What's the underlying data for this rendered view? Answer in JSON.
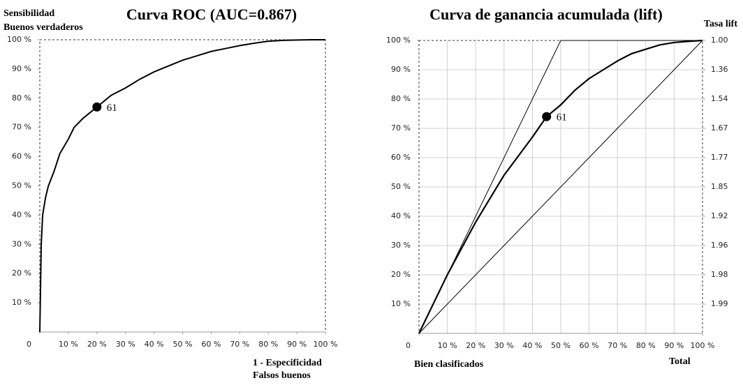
{
  "chart_data": [
    {
      "type": "line",
      "title": "Curva ROC (AUC=0.867)",
      "ylabel": [
        "Sensibilidad",
        "Buenos verdaderos"
      ],
      "xlabel": [
        "1 - Especificidad",
        "Falsos buenos"
      ],
      "xlim": [
        0,
        100
      ],
      "ylim": [
        0,
        100
      ],
      "grid": false,
      "xticks": [
        0,
        {
          "value": 10,
          "label": "10 %"
        },
        {
          "value": 20,
          "label": "20 %"
        },
        {
          "value": 30,
          "label": "30 %"
        },
        {
          "value": 40,
          "label": "40 %"
        },
        {
          "value": 50,
          "label": "50 %"
        },
        {
          "value": 60,
          "label": "60 %"
        },
        {
          "value": 70,
          "label": "70 %"
        },
        {
          "value": 80,
          "label": "80 %"
        },
        {
          "value": 90,
          "label": "90 %"
        },
        {
          "value": 100,
          "label": "100 %"
        }
      ],
      "yticks": [
        {
          "value": 10,
          "label": "10 %"
        },
        {
          "value": 20,
          "label": "20 %"
        },
        {
          "value": 30,
          "label": "30 %"
        },
        {
          "value": 40,
          "label": "40 %"
        },
        {
          "value": 50,
          "label": "50 %"
        },
        {
          "value": 60,
          "label": "60 %"
        },
        {
          "value": 70,
          "label": "70 %"
        },
        {
          "value": 80,
          "label": "80 %"
        },
        {
          "value": 90,
          "label": "90 %"
        },
        {
          "value": 100,
          "label": "100 %"
        }
      ],
      "series": [
        {
          "color": "#000000",
          "line_width": 2,
          "x": [
            0,
            0.5,
            1,
            2,
            3,
            5,
            7,
            10,
            12,
            15,
            20,
            25,
            30,
            35,
            40,
            45,
            50,
            55,
            60,
            65,
            70,
            75,
            80,
            85,
            90,
            95,
            100
          ],
          "values": [
            0,
            30,
            40,
            46,
            50,
            55,
            61,
            66,
            70,
            73,
            77,
            81,
            83.5,
            86.5,
            89,
            91,
            93,
            94.5,
            96,
            97,
            98,
            98.8,
            99.5,
            99.8,
            99.9,
            100,
            100
          ]
        }
      ],
      "marker": {
        "x": 20,
        "y": 77,
        "label": "61"
      }
    },
    {
      "type": "line",
      "title": "Curva de ganancia acumulada (lift)",
      "xlabel_left": "Bien clasificados",
      "xlabel_right": "Total",
      "y2label": "Tasa lift",
      "xlim": [
        0,
        100
      ],
      "ylim": [
        0,
        100
      ],
      "grid": true,
      "xticks": [
        0,
        {
          "value": 10,
          "label": "10 %"
        },
        {
          "value": 20,
          "label": "20 %"
        },
        {
          "value": 30,
          "label": "30 %"
        },
        {
          "value": 40,
          "label": "40 %"
        },
        {
          "value": 50,
          "label": "50 %"
        },
        {
          "value": 60,
          "label": "60 %"
        },
        {
          "value": 70,
          "label": "70 %"
        },
        {
          "value": 80,
          "label": "80 %"
        },
        {
          "value": 90,
          "label": "90 %"
        },
        {
          "value": 100,
          "label": "100 %"
        }
      ],
      "yticks": [
        {
          "value": 10,
          "label": "10 %"
        },
        {
          "value": 20,
          "label": "20 %"
        },
        {
          "value": 30,
          "label": "30 %"
        },
        {
          "value": 40,
          "label": "40 %"
        },
        {
          "value": 50,
          "label": "50 %"
        },
        {
          "value": 60,
          "label": "60 %"
        },
        {
          "value": 70,
          "label": "70 %"
        },
        {
          "value": 80,
          "label": "80 %"
        },
        {
          "value": 90,
          "label": "90 %"
        },
        {
          "value": 100,
          "label": "100 %"
        }
      ],
      "y2_labels": [
        "1.99",
        "1.98",
        "1.96",
        "1.92",
        "1.85",
        "1.77",
        "1.67",
        "1.54",
        "1.36",
        "1.00"
      ],
      "series": [
        {
          "color": "#000000",
          "line_width": 1,
          "x": [
            0,
            50,
            100
          ],
          "values": [
            0,
            100,
            100
          ]
        },
        {
          "color": "#000000",
          "line_width": 1,
          "x": [
            0,
            100
          ],
          "values": [
            0,
            100
          ]
        },
        {
          "color": "#000000",
          "line_width": 2.2,
          "x": [
            0,
            10,
            20,
            30,
            40,
            45,
            50,
            55,
            60,
            65,
            70,
            75,
            80,
            85,
            90,
            95,
            100
          ],
          "values": [
            0,
            20,
            38,
            54,
            67,
            74,
            78,
            83,
            87,
            90,
            93,
            95.5,
            97,
            98.5,
            99.3,
            99.7,
            100
          ]
        }
      ],
      "marker": {
        "x": 45,
        "y": 74,
        "label": "61"
      }
    }
  ]
}
